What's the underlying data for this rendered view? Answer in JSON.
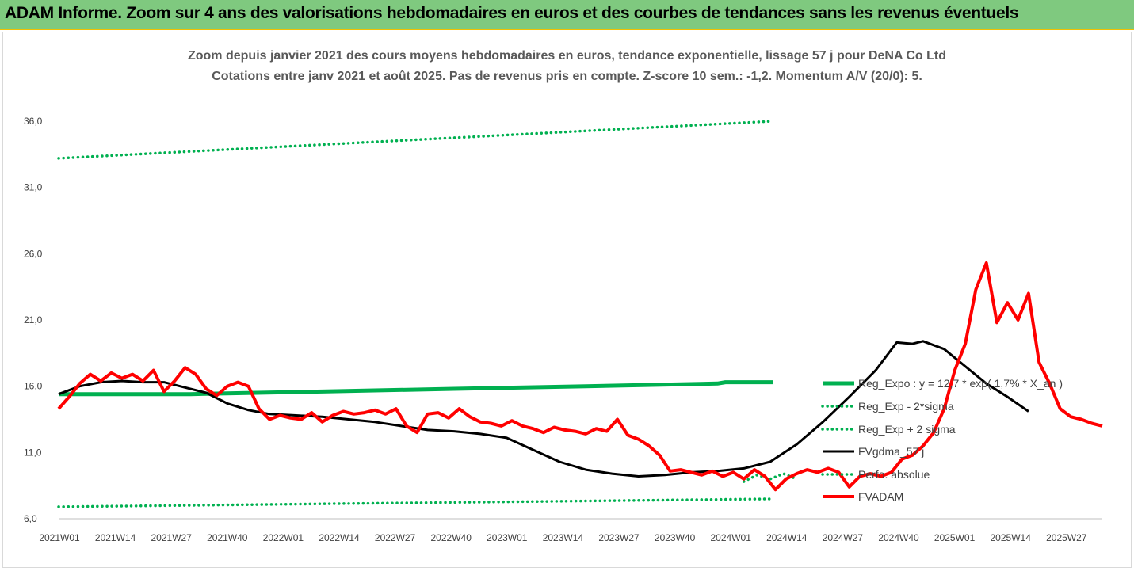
{
  "header": {
    "title": "ADAM Informe. Zoom sur 4 ans des valorisations hebdomadaires en euros et des courbes de tendances sans les revenus éventuels"
  },
  "chart_data": {
    "type": "line",
    "title": "Zoom depuis janvier 2021 des cours moyens hebdomadaires en euros, tendance exponentielle, lissage 57 j pour DeNA Co Ltd",
    "subtitle": "Cotations entre janv 2021 et août 2025. Pas de revenus pris en compte. Z-score 10 sem.: -1,2. Momentum A/V (20/0): 5.",
    "xlabel": "",
    "ylabel": "",
    "ylim": [
      6,
      36
    ],
    "yticks": [
      "6,0",
      "11,0",
      "16,0",
      "21,0",
      "26,0",
      "31,0",
      "36,0"
    ],
    "xticks": [
      "2021W01",
      "2021W14",
      "2021W27",
      "2021W40",
      "2022W01",
      "2022W14",
      "2022W27",
      "2022W40",
      "2023W01",
      "2023W14",
      "2023W27",
      "2023W40",
      "2024W01",
      "2024W14",
      "2024W27",
      "2024W40",
      "2025W01",
      "2025W14",
      "2025W27"
    ],
    "grid": false,
    "legend": "right",
    "colors": {
      "reg_expo": "#00b050",
      "sigma": "#00b050",
      "fvgdma": "#000000",
      "fvadam": "#ff0000"
    },
    "series": [
      {
        "name": "Reg_Expo : y = 12,7 * exp( 1,7% * X_an )",
        "points": [
          [
            0,
            15.4
          ],
          [
            50,
            15.4
          ],
          [
            100,
            15.6
          ],
          [
            150,
            15.8
          ],
          [
            200,
            16.0
          ],
          [
            250,
            16.2
          ],
          [
            253,
            16.3
          ],
          [
            271,
            16.3
          ]
        ]
      },
      {
        "name": "Reg_Exp - 2*sigma",
        "points": [
          [
            0,
            6.9
          ],
          [
            271,
            7.5
          ]
        ]
      },
      {
        "name": "Reg_Exp + 2 sigma",
        "points": [
          [
            0,
            33.2
          ],
          [
            271,
            36.0
          ]
        ]
      },
      {
        "name": "FVgdma_57 j",
        "points": [
          [
            0,
            15.4
          ],
          [
            8,
            16.0
          ],
          [
            16,
            16.3
          ],
          [
            24,
            16.4
          ],
          [
            32,
            16.3
          ],
          [
            40,
            16.3
          ],
          [
            48,
            15.9
          ],
          [
            56,
            15.5
          ],
          [
            64,
            14.7
          ],
          [
            72,
            14.2
          ],
          [
            80,
            13.9
          ],
          [
            90,
            13.8
          ],
          [
            100,
            13.7
          ],
          [
            110,
            13.5
          ],
          [
            120,
            13.3
          ],
          [
            130,
            13.0
          ],
          [
            140,
            12.7
          ],
          [
            150,
            12.6
          ],
          [
            160,
            12.4
          ],
          [
            170,
            12.1
          ],
          [
            180,
            11.2
          ],
          [
            190,
            10.3
          ],
          [
            200,
            9.7
          ],
          [
            210,
            9.4
          ],
          [
            220,
            9.2
          ],
          [
            230,
            9.3
          ],
          [
            240,
            9.5
          ],
          [
            250,
            9.6
          ],
          [
            260,
            9.8
          ],
          [
            270,
            10.3
          ],
          [
            280,
            11.6
          ],
          [
            290,
            13.3
          ],
          [
            300,
            15.2
          ],
          [
            310,
            17.2
          ],
          [
            318,
            19.3
          ],
          [
            324,
            19.2
          ],
          [
            328,
            19.4
          ],
          [
            336,
            18.8
          ],
          [
            344,
            17.5
          ],
          [
            352,
            16.2
          ],
          [
            360,
            15.2
          ],
          [
            368,
            14.1
          ]
        ]
      },
      {
        "name": "Perfo. absolue",
        "points": [
          [
            260,
            8.8
          ],
          [
            265,
            9.3
          ],
          [
            270,
            9.0
          ],
          [
            275,
            9.4
          ],
          [
            280,
            9.0
          ]
        ]
      },
      {
        "name": "FVADAM",
        "points": [
          [
            0,
            14.3
          ],
          [
            4,
            15.2
          ],
          [
            8,
            16.2
          ],
          [
            12,
            16.9
          ],
          [
            16,
            16.4
          ],
          [
            20,
            17.0
          ],
          [
            24,
            16.6
          ],
          [
            28,
            16.9
          ],
          [
            32,
            16.4
          ],
          [
            36,
            17.2
          ],
          [
            40,
            15.6
          ],
          [
            44,
            16.4
          ],
          [
            48,
            17.4
          ],
          [
            52,
            16.9
          ],
          [
            56,
            15.8
          ],
          [
            60,
            15.3
          ],
          [
            64,
            16.0
          ],
          [
            68,
            16.3
          ],
          [
            72,
            16.0
          ],
          [
            76,
            14.3
          ],
          [
            80,
            13.5
          ],
          [
            84,
            13.8
          ],
          [
            88,
            13.6
          ],
          [
            92,
            13.5
          ],
          [
            96,
            14.0
          ],
          [
            100,
            13.3
          ],
          [
            104,
            13.8
          ],
          [
            108,
            14.1
          ],
          [
            112,
            13.9
          ],
          [
            116,
            14.0
          ],
          [
            120,
            14.2
          ],
          [
            124,
            13.9
          ],
          [
            128,
            14.3
          ],
          [
            132,
            13.0
          ],
          [
            136,
            12.5
          ],
          [
            140,
            13.9
          ],
          [
            144,
            14.0
          ],
          [
            148,
            13.6
          ],
          [
            152,
            14.3
          ],
          [
            156,
            13.7
          ],
          [
            160,
            13.3
          ],
          [
            164,
            13.2
          ],
          [
            168,
            13.0
          ],
          [
            172,
            13.4
          ],
          [
            176,
            13.0
          ],
          [
            180,
            12.8
          ],
          [
            184,
            12.5
          ],
          [
            188,
            12.9
          ],
          [
            192,
            12.7
          ],
          [
            196,
            12.6
          ],
          [
            200,
            12.4
          ],
          [
            204,
            12.8
          ],
          [
            208,
            12.6
          ],
          [
            212,
            13.5
          ],
          [
            216,
            12.3
          ],
          [
            220,
            12.0
          ],
          [
            224,
            11.5
          ],
          [
            228,
            10.8
          ],
          [
            232,
            9.6
          ],
          [
            236,
            9.7
          ],
          [
            240,
            9.5
          ],
          [
            244,
            9.3
          ],
          [
            248,
            9.6
          ],
          [
            252,
            9.2
          ],
          [
            256,
            9.5
          ],
          [
            260,
            9.0
          ],
          [
            264,
            9.7
          ],
          [
            268,
            9.2
          ],
          [
            272,
            8.2
          ],
          [
            276,
            9.0
          ],
          [
            280,
            9.4
          ],
          [
            284,
            9.7
          ],
          [
            288,
            9.5
          ],
          [
            292,
            9.8
          ],
          [
            296,
            9.5
          ],
          [
            300,
            8.4
          ],
          [
            304,
            9.2
          ],
          [
            308,
            9.4
          ],
          [
            312,
            9.2
          ],
          [
            316,
            9.5
          ],
          [
            320,
            10.5
          ],
          [
            324,
            10.8
          ],
          [
            328,
            11.5
          ],
          [
            332,
            12.5
          ],
          [
            336,
            14.3
          ],
          [
            340,
            17.2
          ],
          [
            344,
            19.2
          ],
          [
            348,
            23.3
          ],
          [
            352,
            25.3
          ],
          [
            356,
            20.8
          ],
          [
            360,
            22.3
          ],
          [
            364,
            21.0
          ],
          [
            368,
            23.0
          ],
          [
            372,
            17.8
          ],
          [
            376,
            16.2
          ],
          [
            380,
            14.3
          ],
          [
            384,
            13.7
          ],
          [
            388,
            13.5
          ],
          [
            392,
            13.2
          ],
          [
            396,
            13.0
          ]
        ]
      }
    ]
  }
}
